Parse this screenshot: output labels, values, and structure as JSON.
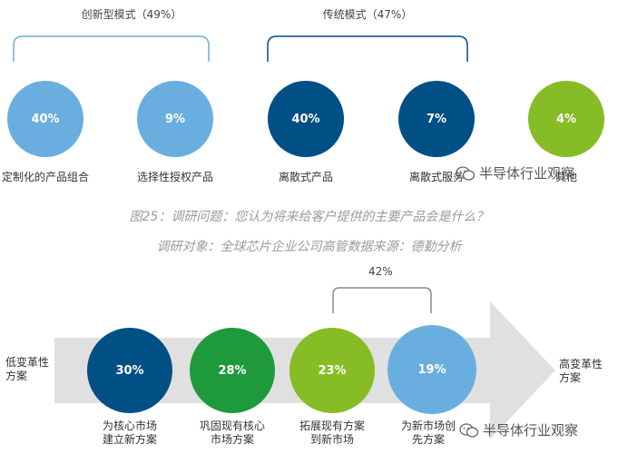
{
  "top": {
    "groups": [
      {
        "label": "创新型模式（49%）"
      },
      {
        "label": "传统模式（47%）"
      }
    ],
    "circles": [
      {
        "value": "40%",
        "label": "定制化的产品组合",
        "color": "#6aaee0"
      },
      {
        "value": "9%",
        "label": "选择性授权产品",
        "color": "#6aaee0"
      },
      {
        "value": "40%",
        "label": "离散式产品",
        "color": "#004f85"
      },
      {
        "value": "7%",
        "label": "离散式服务",
        "color": "#004f85"
      },
      {
        "value": "4%",
        "label": "其他",
        "color": "#86bc25"
      }
    ]
  },
  "caption": {
    "line1": "图25：调研问题：您认为将来给客户提供的主要产品会是什么？",
    "line2": "调研对象：全球芯片企业公司高管数据来源：德勤分析"
  },
  "bottom": {
    "bracket_label": "42%",
    "left_label": [
      "低变革性",
      "方案"
    ],
    "right_label": [
      "高变革性",
      "方案"
    ],
    "circles": [
      {
        "value": "30%",
        "label": [
          "为核心市场",
          "建立新方案"
        ],
        "color": "#004f85"
      },
      {
        "value": "28%",
        "label": [
          "巩固现有核心",
          "市场方案"
        ],
        "color": "#1e9a3d"
      },
      {
        "value": "23%",
        "label": [
          "拓展现有方案",
          "到新市场"
        ],
        "color": "#86bc25"
      },
      {
        "value": "19%",
        "label": [
          "为新市场创",
          "先方案"
        ],
        "color": "#6aaee0"
      }
    ]
  },
  "watermark": "半导体行业观察"
}
